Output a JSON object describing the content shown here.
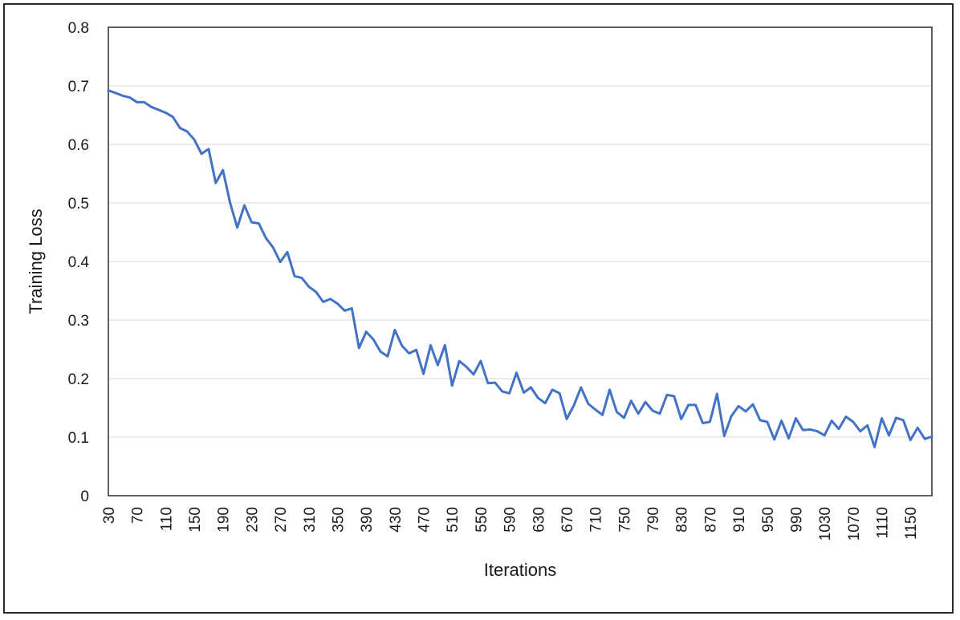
{
  "chart_data": {
    "type": "line",
    "title": "",
    "xlabel": "Iterations",
    "ylabel": "Training Loss",
    "ylim": [
      0,
      0.8
    ],
    "y_ticks": [
      0,
      0.1,
      0.2,
      0.3,
      0.4,
      0.5,
      0.6,
      0.7,
      0.8
    ],
    "y_tick_labels": [
      "0",
      "0.1",
      "0.2",
      "0.3",
      "0.4",
      "0.5",
      "0.6",
      "0.7",
      "0.8"
    ],
    "x_tick_labels": [
      "30",
      "70",
      "110",
      "150",
      "190",
      "230",
      "270",
      "310",
      "350",
      "390",
      "430",
      "470",
      "510",
      "550",
      "590",
      "630",
      "670",
      "710",
      "750",
      "790",
      "830",
      "870",
      "910",
      "950",
      "990",
      "1030",
      "1070",
      "1110",
      "1150"
    ],
    "grid": true,
    "legend": "none",
    "line_color": "#4472c4",
    "series": [
      {
        "x": [
          30,
          40,
          50,
          60,
          70,
          80,
          90,
          100,
          110,
          120,
          130,
          140,
          150,
          160,
          170,
          180,
          190,
          200,
          210,
          220,
          230,
          240,
          250,
          260,
          270,
          280,
          290,
          300,
          310,
          320,
          330,
          340,
          350,
          360,
          370,
          380,
          390,
          400,
          410,
          420,
          430,
          440,
          450,
          460,
          470,
          480,
          490,
          500,
          510,
          520,
          530,
          540,
          550,
          560,
          570,
          580,
          590,
          600,
          610,
          620,
          630,
          640,
          650,
          660,
          670,
          680,
          690,
          700,
          710,
          720,
          730,
          740,
          750,
          760,
          770,
          780,
          790,
          800,
          810,
          820,
          830,
          840,
          850,
          860,
          870,
          880,
          890,
          900,
          910,
          920,
          930,
          940,
          950,
          960,
          970,
          980,
          990,
          1000,
          1010,
          1020,
          1030,
          1040,
          1050,
          1060,
          1070,
          1080,
          1090,
          1100,
          1110,
          1120,
          1130,
          1140,
          1150,
          1160,
          1170,
          1180
        ],
        "values": [
          0.692,
          0.688,
          0.683,
          0.68,
          0.672,
          0.672,
          0.664,
          0.659,
          0.654,
          0.647,
          0.628,
          0.622,
          0.608,
          0.584,
          0.592,
          0.534,
          0.556,
          0.5,
          0.458,
          0.496,
          0.467,
          0.465,
          0.44,
          0.424,
          0.399,
          0.416,
          0.375,
          0.372,
          0.357,
          0.348,
          0.331,
          0.336,
          0.328,
          0.316,
          0.32,
          0.252,
          0.28,
          0.267,
          0.246,
          0.238,
          0.283,
          0.256,
          0.243,
          0.249,
          0.208,
          0.257,
          0.223,
          0.257,
          0.188,
          0.23,
          0.22,
          0.207,
          0.23,
          0.192,
          0.193,
          0.178,
          0.175,
          0.21,
          0.176,
          0.185,
          0.167,
          0.158,
          0.181,
          0.175,
          0.131,
          0.154,
          0.185,
          0.157,
          0.147,
          0.138,
          0.181,
          0.143,
          0.133,
          0.162,
          0.14,
          0.16,
          0.145,
          0.14,
          0.172,
          0.17,
          0.131,
          0.155,
          0.155,
          0.124,
          0.126,
          0.174,
          0.102,
          0.136,
          0.153,
          0.144,
          0.156,
          0.129,
          0.126,
          0.096,
          0.128,
          0.098,
          0.132,
          0.112,
          0.113,
          0.11,
          0.103,
          0.128,
          0.114,
          0.135,
          0.126,
          0.11,
          0.12,
          0.083,
          0.132,
          0.103,
          0.133,
          0.129,
          0.095,
          0.116,
          0.097,
          0.101
        ]
      }
    ]
  }
}
